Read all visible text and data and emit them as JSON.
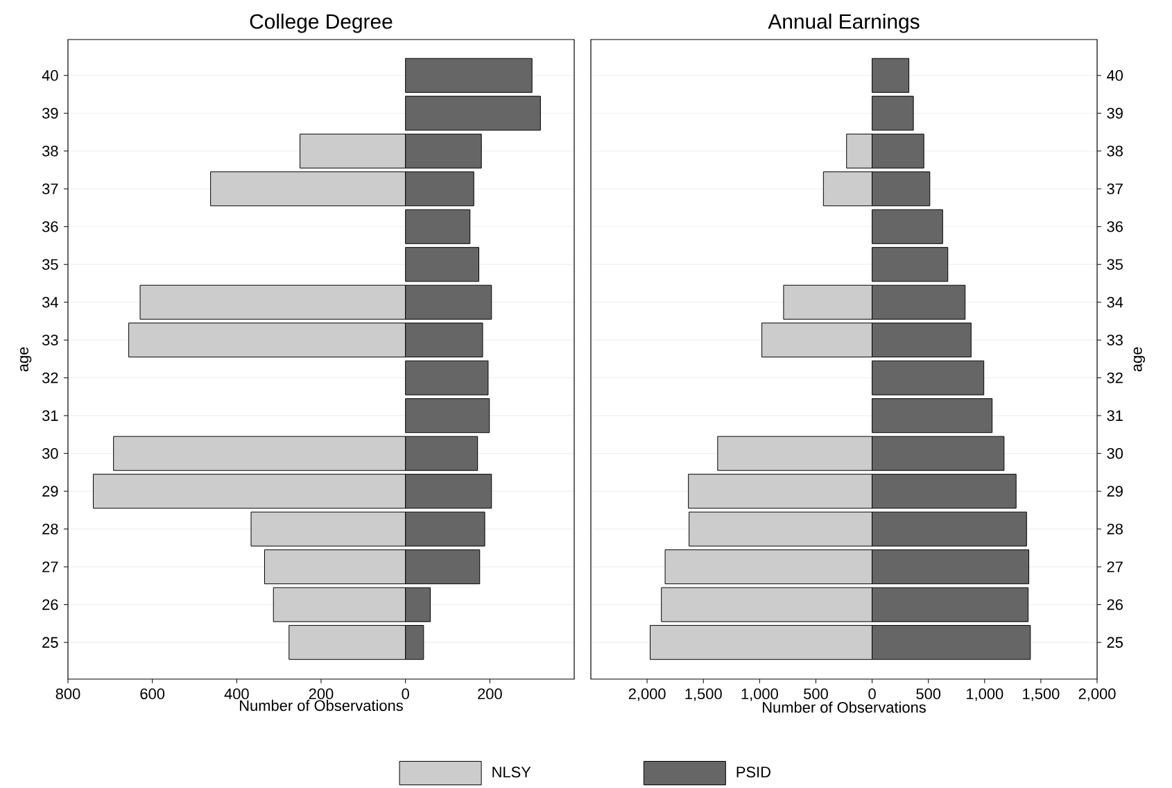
{
  "chart_data": [
    {
      "type": "bar",
      "orientation": "horizontal",
      "stacked": true,
      "title": "College Degree",
      "xlabel": "Number of Observations",
      "ylabel": "age",
      "grid": "y",
      "legend": "bottom",
      "categories": [
        "40",
        "39",
        "38",
        "37",
        "36",
        "35",
        "34",
        "33",
        "32",
        "31",
        "30",
        "29",
        "28",
        "27",
        "26",
        "25"
      ],
      "xlim": [
        -800,
        400
      ],
      "xticks": [
        {
          "value": -800,
          "label": "800"
        },
        {
          "value": -600,
          "label": "600"
        },
        {
          "value": -400,
          "label": "400"
        },
        {
          "value": -200,
          "label": "200"
        },
        0,
        200
      ],
      "series": [
        {
          "name": "NLSY",
          "color": "#cccccc",
          "values": [
            null,
            null,
            -250,
            -462,
            null,
            null,
            -629,
            -656,
            null,
            null,
            -692,
            -740,
            -366,
            -334,
            -313,
            -276
          ]
        },
        {
          "name": "PSID",
          "color": "#666666",
          "values": [
            300,
            320,
            180,
            162,
            153,
            174,
            204,
            183,
            196,
            199,
            171,
            204,
            188,
            176,
            59,
            43
          ]
        }
      ]
    },
    {
      "type": "bar",
      "orientation": "horizontal",
      "stacked": true,
      "title": "Annual Earnings",
      "xlabel": "Number of Observations",
      "ylabel": "age",
      "grid": "y",
      "categories": [
        "40",
        "39",
        "38",
        "37",
        "36",
        "35",
        "34",
        "33",
        "32",
        "31",
        "30",
        "29",
        "28",
        "27",
        "26",
        "25"
      ],
      "xlim": [
        -2500,
        2000
      ],
      "xticks": [
        {
          "value": -2000,
          "label": "2,000"
        },
        {
          "value": -1500,
          "label": "1,500"
        },
        {
          "value": -1000,
          "label": "1,000"
        },
        {
          "value": -500,
          "label": "500"
        },
        0,
        500,
        {
          "value": 1000,
          "label": "1,000"
        },
        {
          "value": 1500,
          "label": "1,500"
        },
        {
          "value": 2000,
          "label": "2,000"
        }
      ],
      "series": [
        {
          "color": "#cccccc",
          "values": [
            null,
            null,
            -227,
            -433,
            null,
            null,
            -787,
            -980,
            null,
            null,
            -1373,
            -1633,
            -1627,
            -1840,
            -1873,
            -1973
          ]
        },
        {
          "color": "#666666",
          "values": [
            327,
            367,
            460,
            513,
            627,
            673,
            827,
            880,
            993,
            1067,
            1173,
            1280,
            1373,
            1393,
            1387,
            1407
          ]
        }
      ]
    }
  ]
}
